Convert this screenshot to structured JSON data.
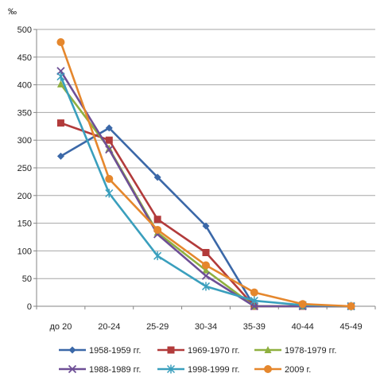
{
  "chart_data": {
    "type": "line",
    "unit_label": "‰",
    "categories": [
      "до 20",
      "20-24",
      "25-29",
      "30-34",
      "35-39",
      "40-44",
      "45-49"
    ],
    "ylim": [
      0,
      500
    ],
    "yticks": [
      0,
      50,
      100,
      150,
      200,
      250,
      300,
      350,
      400,
      450,
      500
    ],
    "grid": true,
    "legend_position": "bottom",
    "series": [
      {
        "name": "1958-1959 гг.",
        "color": "#3b68a8",
        "marker": "diamond",
        "values": [
          271,
          322,
          233,
          145,
          0,
          0,
          0
        ]
      },
      {
        "name": "1969-1970 гг.",
        "color": "#b23b3b",
        "marker": "square",
        "values": [
          331,
          300,
          157,
          97,
          0,
          0,
          0
        ]
      },
      {
        "name": "1978-1979 гг.",
        "color": "#8fb040",
        "marker": "triangle",
        "values": [
          401,
          285,
          133,
          65,
          0,
          0,
          0
        ]
      },
      {
        "name": "1988-1989 гг.",
        "color": "#6e4f96",
        "marker": "x",
        "values": [
          425,
          283,
          130,
          55,
          0,
          0,
          0
        ]
      },
      {
        "name": "1998-1999 гг.",
        "color": "#3a9fbd",
        "marker": "asterisk",
        "values": [
          415,
          204,
          91,
          36,
          10,
          2,
          0
        ]
      },
      {
        "name": "2009 г.",
        "color": "#e5872d",
        "marker": "circle",
        "values": [
          477,
          230,
          138,
          74,
          25,
          4,
          0
        ]
      }
    ]
  }
}
